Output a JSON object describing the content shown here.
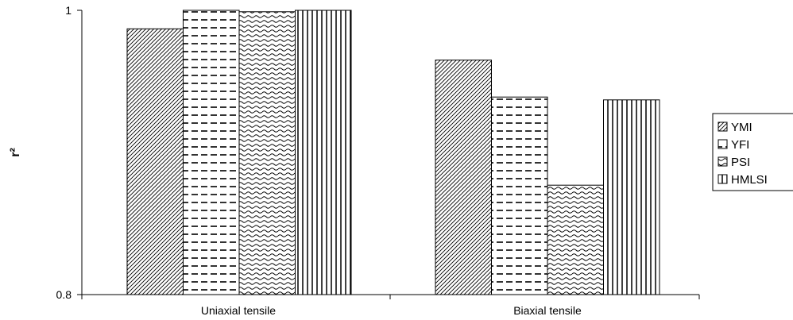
{
  "chart_data": {
    "type": "bar",
    "categories": [
      "Uniaxial tensile",
      "Biaxial tensile"
    ],
    "series": [
      {
        "name": "YMI",
        "values": [
          0.987,
          0.965
        ]
      },
      {
        "name": "YFI",
        "values": [
          1.0,
          0.939
        ]
      },
      {
        "name": "PSI",
        "values": [
          0.999,
          0.877
        ]
      },
      {
        "name": "HMLSI",
        "values": [
          1.0,
          0.937
        ]
      }
    ],
    "ylabel": "r²",
    "yticks": [
      "1",
      "0.8"
    ],
    "ylim": [
      0.8,
      1.0
    ],
    "legend_position": "right",
    "grid": false
  }
}
